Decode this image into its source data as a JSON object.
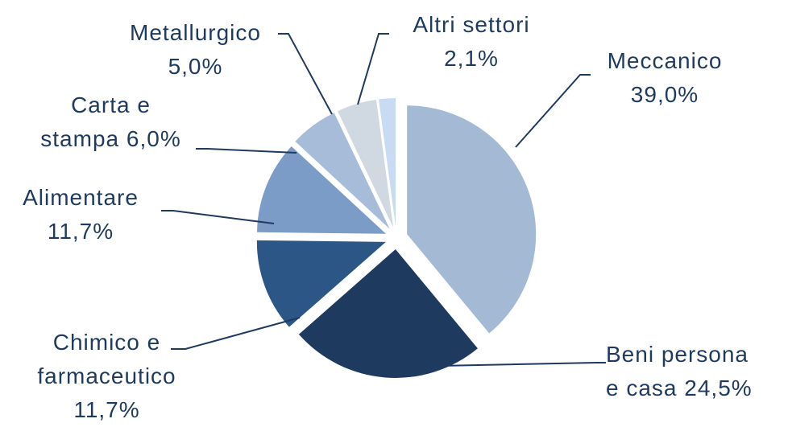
{
  "chart_data": {
    "type": "pie",
    "categories": [
      "Meccanico",
      "Beni persona e casa",
      "Chimico e farmaceutico",
      "Alimentare",
      "Carta e stampa",
      "Metallurgico",
      "Altri settori"
    ],
    "values": [
      39.0,
      24.5,
      11.7,
      11.7,
      6.0,
      5.0,
      2.1
    ],
    "value_labels": [
      "39,0%",
      "24,5%",
      "11,7%",
      "11,7%",
      "6,0%",
      "5,0%",
      "2,1%"
    ],
    "colors": [
      "#a3b9d4",
      "#1f3a5f",
      "#2b5686",
      "#7a9cc6",
      "#a6bcd9",
      "#d0d8e2",
      "#c9dbf2"
    ]
  }
}
